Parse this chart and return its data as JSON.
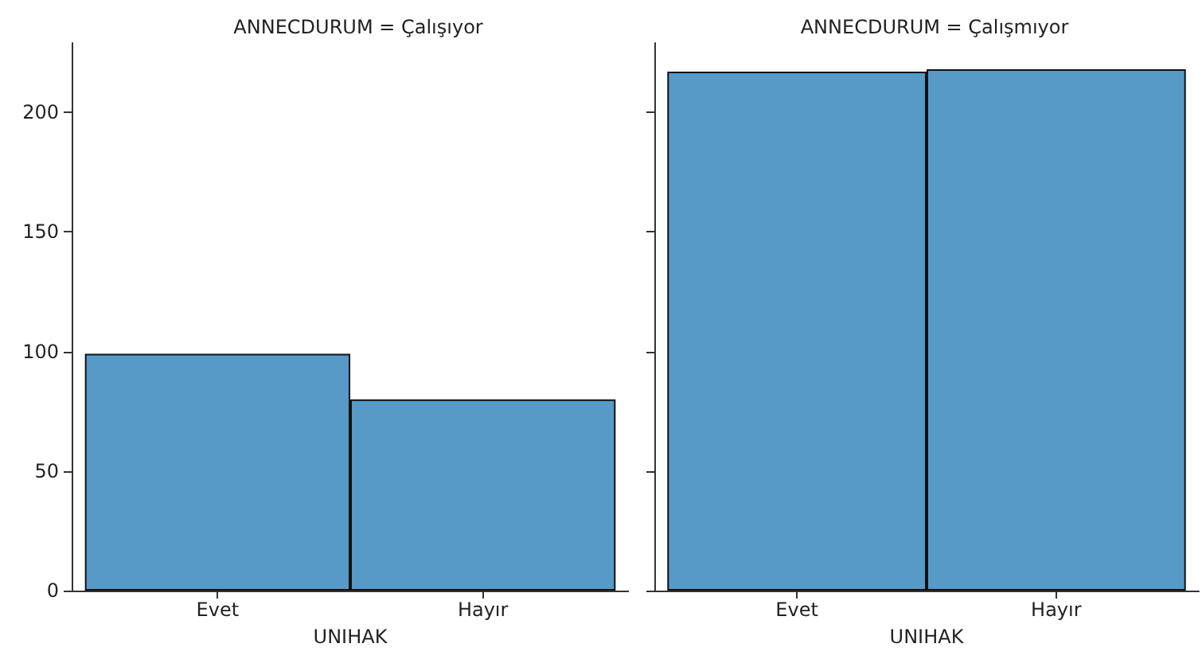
{
  "chart_data": [
    {
      "type": "bar",
      "title": "ANNECDURUM = Çalışıyor",
      "xlabel": "UNIHAK",
      "categories": [
        "Evet",
        "Hayır"
      ],
      "values": [
        99,
        80
      ],
      "color": "#5799c7",
      "ylim": [
        0,
        229
      ],
      "yticks": [
        0,
        50,
        100,
        150,
        200
      ]
    },
    {
      "type": "bar",
      "title": "ANNECDURUM = Çalışmıyor",
      "xlabel": "UNIHAK",
      "categories": [
        "Evet",
        "Hayır"
      ],
      "values": [
        217,
        218
      ],
      "color": "#5799c7",
      "ylim": [
        0,
        229
      ],
      "yticks": [
        0,
        50,
        100,
        150,
        200
      ],
      "tick_labels": "x"
    }
  ]
}
